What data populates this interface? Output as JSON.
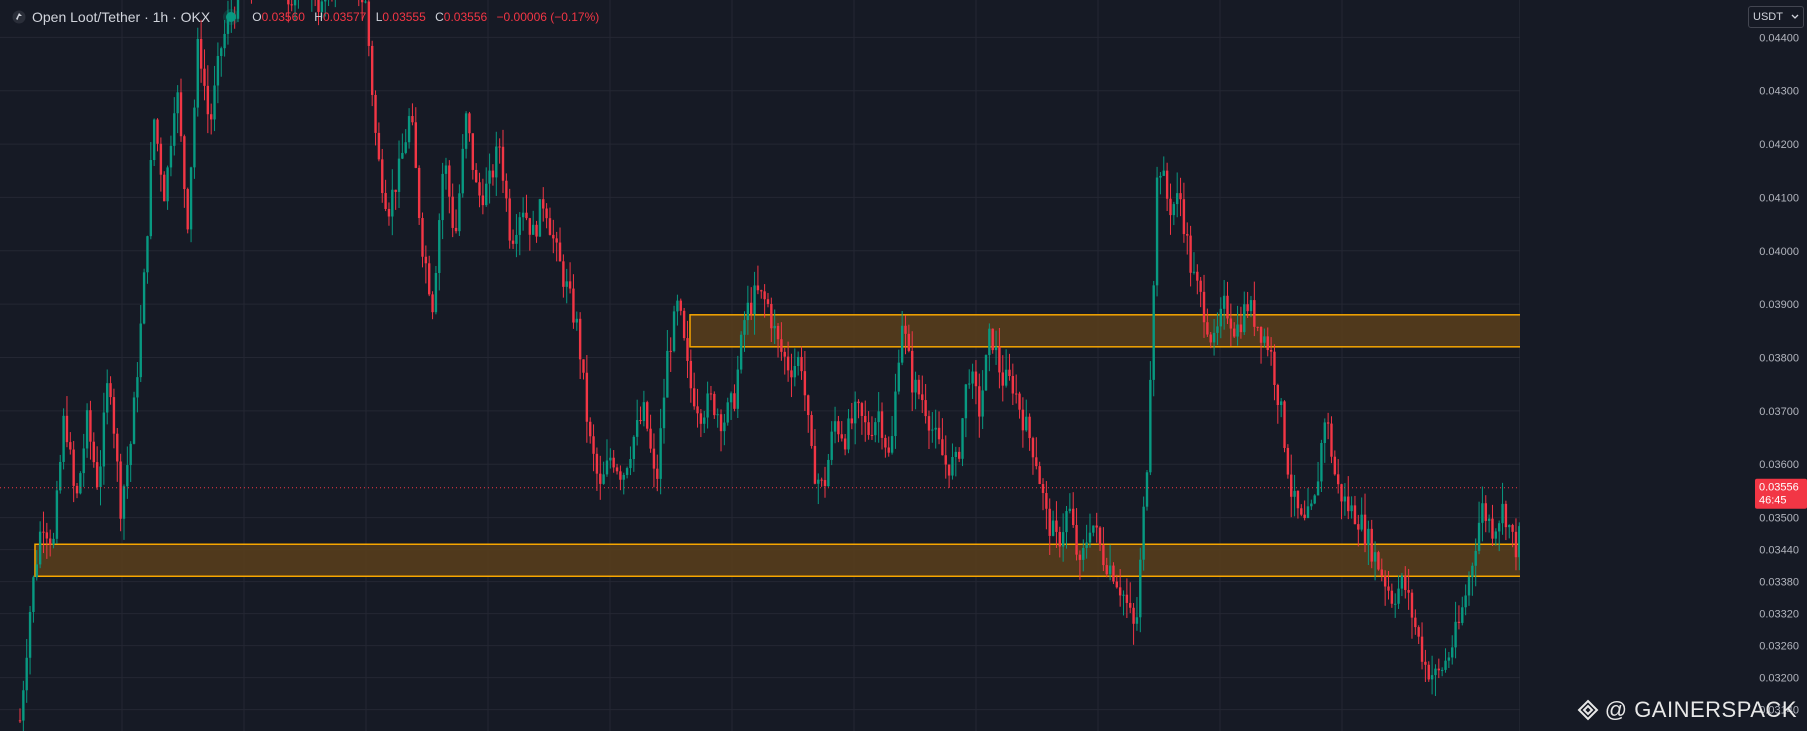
{
  "header": {
    "symbol": "Open Loot/Tether · 1h · OKX",
    "ohlc": {
      "o_label": "O",
      "o": "0.03560",
      "h_label": "H",
      "h": "0.03577",
      "l_label": "L",
      "l": "0.03555",
      "c_label": "C",
      "c": "0.03556",
      "change": "−0.00006 (−0.17%)"
    }
  },
  "currency_button": {
    "label": "USDT",
    "icon": "chevron-down-icon"
  },
  "watermark": {
    "text": "@ GAINERSPACK",
    "icon": "binance-diamond-icon"
  },
  "last_price": {
    "value": "0.03556",
    "countdown": "46:45"
  },
  "colors": {
    "background": "#161a25",
    "up": "#089981",
    "down": "#f23645",
    "zone_fill": "#5a3f1b",
    "zone_stroke": "#f7a600",
    "grid": "#242733",
    "axis_text": "#b2b5be"
  },
  "chart_data": {
    "type": "candlestick",
    "grid": true,
    "ylim": [
      0.031,
      0.0447
    ],
    "yticks": [
      "0.04400",
      "0.04300",
      "0.04200",
      "0.04100",
      "0.04000",
      "0.03900",
      "0.03800",
      "0.03700",
      "0.03600",
      "0.03500",
      "0.03440",
      "0.03380",
      "0.03320",
      "0.03260",
      "0.03200",
      "0.03140"
    ],
    "zones": [
      {
        "name": "resistance-zone",
        "low": 0.0382,
        "high": 0.0388
      },
      {
        "name": "support-zone",
        "low": 0.0339,
        "high": 0.0345
      }
    ],
    "price_path": [
      0.0312,
      0.0335,
      0.035,
      0.0345,
      0.037,
      0.0352,
      0.0368,
      0.0356,
      0.0378,
      0.0352,
      0.0365,
      0.039,
      0.0425,
      0.041,
      0.0432,
      0.0405,
      0.044,
      0.0423,
      0.0438,
      0.0445,
      0.0448,
      0.045,
      0.0452,
      0.045,
      0.0448,
      0.0449,
      0.0451,
      0.0445,
      0.045,
      0.0455,
      0.045,
      0.0446,
      0.0418,
      0.0408,
      0.0415,
      0.0426,
      0.0402,
      0.039,
      0.0418,
      0.0402,
      0.0425,
      0.041,
      0.0412,
      0.042,
      0.0402,
      0.0409,
      0.0403,
      0.041,
      0.04,
      0.0393,
      0.0385,
      0.0365,
      0.0355,
      0.0362,
      0.0358,
      0.0365,
      0.037,
      0.0355,
      0.038,
      0.039,
      0.0375,
      0.037,
      0.0372,
      0.0368,
      0.0372,
      0.0388,
      0.0392,
      0.039,
      0.0382,
      0.0378,
      0.038,
      0.036,
      0.0355,
      0.0368,
      0.0365,
      0.037,
      0.0366,
      0.037,
      0.036,
      0.0388,
      0.0375,
      0.0372,
      0.0365,
      0.036,
      0.036,
      0.0378,
      0.037,
      0.0385,
      0.0376,
      0.0375,
      0.0368,
      0.0362,
      0.035,
      0.0345,
      0.0352,
      0.034,
      0.035,
      0.0343,
      0.034,
      0.0335,
      0.0328,
      0.036,
      0.0418,
      0.0408,
      0.041,
      0.0396,
      0.039,
      0.0382,
      0.039,
      0.0385,
      0.039,
      0.0386,
      0.0382,
      0.037,
      0.0354,
      0.0348,
      0.0352,
      0.037,
      0.0356,
      0.0352,
      0.035,
      0.0345,
      0.034,
      0.0335,
      0.0338,
      0.033,
      0.0322,
      0.032,
      0.0324,
      0.033,
      0.034,
      0.0352,
      0.0348,
      0.0352,
      0.0344,
      0.035,
      0.0343,
      0.0354,
      0.035,
      0.0345,
      0.0352,
      0.036,
      0.0354,
      0.0355,
      0.03556
    ]
  }
}
